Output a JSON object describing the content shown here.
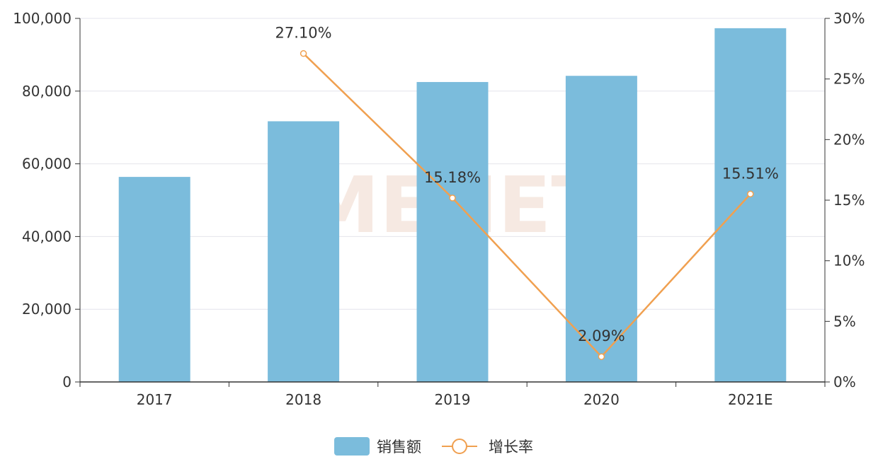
{
  "chart_data": {
    "type": "bar",
    "categories": [
      "2017",
      "2018",
      "2019",
      "2020",
      "2021E"
    ],
    "series": [
      {
        "name": "销售额",
        "type": "bar",
        "axis": "left",
        "color": "#7bbcdc",
        "values": [
          56400,
          71700,
          82500,
          84200,
          97300
        ]
      },
      {
        "name": "增长率",
        "type": "line",
        "axis": "right",
        "color": "#f0a050",
        "values": [
          null,
          27.1,
          15.18,
          2.09,
          15.51
        ],
        "labels": [
          "",
          "27.10%",
          "15.18%",
          "2.09%",
          "15.51%"
        ]
      }
    ],
    "y_left": {
      "min": 0,
      "max": 100000,
      "ticks": [
        "0",
        "20,000",
        "40,000",
        "60,000",
        "80,000",
        "100,000"
      ]
    },
    "y_right": {
      "min": 0,
      "max": 30,
      "ticks": [
        "0%",
        "5%",
        "10%",
        "15%",
        "20%",
        "25%",
        "30%"
      ]
    },
    "grid": true,
    "legend_position": "bottom-center",
    "watermark": "MENET"
  }
}
